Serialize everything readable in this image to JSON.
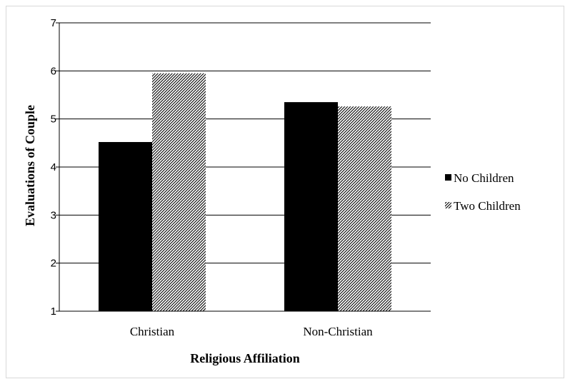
{
  "chart_data": {
    "type": "bar",
    "categories": [
      "Christian",
      "Non-Christian"
    ],
    "series": [
      {
        "name": "No Children",
        "values": [
          4.52,
          5.35
        ],
        "color": "#000000",
        "pattern": "solid"
      },
      {
        "name": "Two Children",
        "values": [
          5.95,
          5.26
        ],
        "color": "#000000",
        "pattern": "diagonal-hatch"
      }
    ],
    "title": "",
    "xlabel": "Religious Affiliation",
    "ylabel": "Evaluations of Couple",
    "ylim": [
      1,
      7
    ],
    "yticks": [
      1,
      2,
      3,
      4,
      5,
      6,
      7
    ],
    "grid": true,
    "legend_position": "right"
  }
}
